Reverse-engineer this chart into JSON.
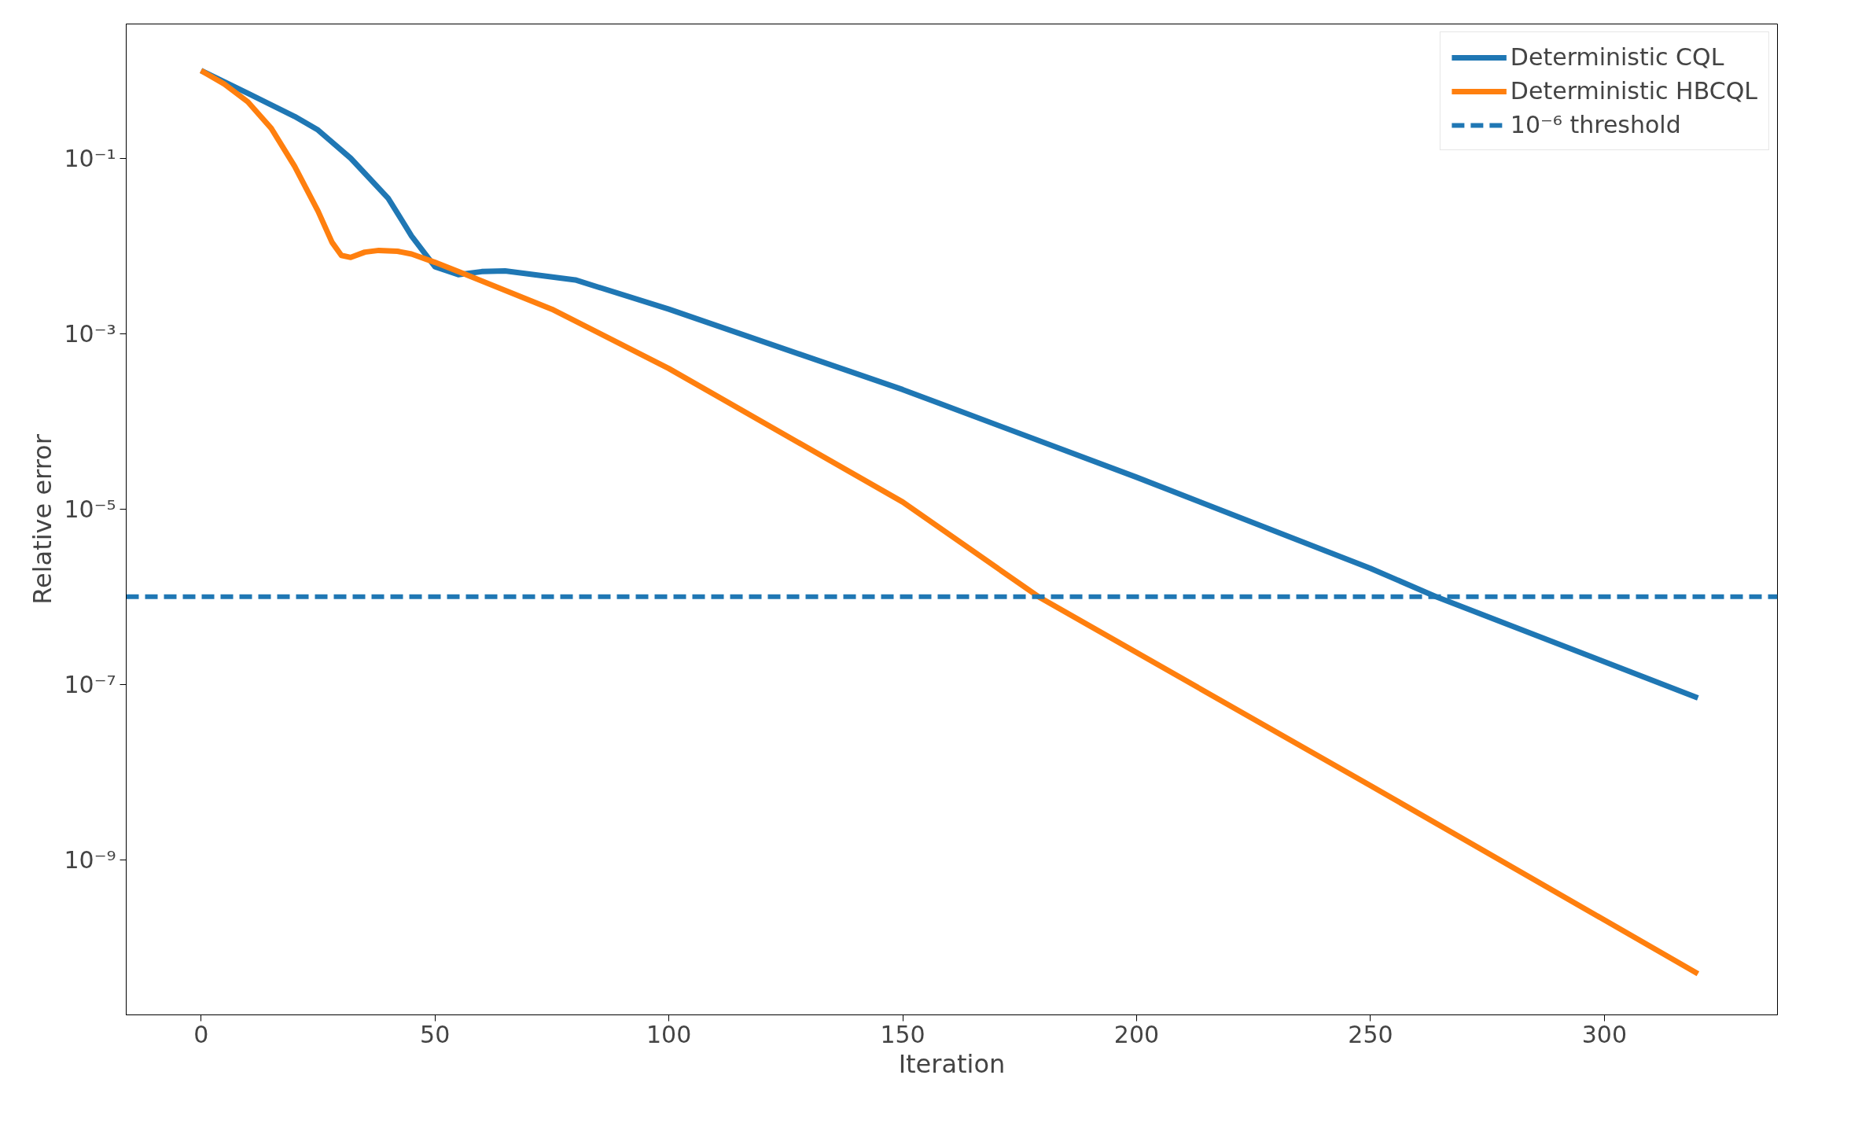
{
  "chart_data": {
    "type": "line",
    "xlabel": "Iteration",
    "ylabel": "Relative error",
    "log": "y",
    "grid": false,
    "legend": "top right",
    "line_style": "solid",
    "xlim": [
      -16,
      337
    ],
    "xticks": [
      0,
      50,
      100,
      150,
      200,
      250,
      300
    ],
    "ylim": [
      1.7e-11,
      3.4
    ],
    "yticks": [
      {
        "value": 0.1,
        "label": "10⁻¹"
      },
      {
        "value": 0.001,
        "label": "10⁻³"
      },
      {
        "value": 1e-05,
        "label": "10⁻⁵"
      },
      {
        "value": 1e-07,
        "label": "10⁻⁷"
      },
      {
        "value": 1e-09,
        "label": "10⁻⁹"
      }
    ],
    "series": [
      {
        "name": "Deterministic CQL",
        "color": "#1f77b4",
        "x": [
          0,
          10,
          20,
          25,
          32,
          40,
          45,
          50,
          55,
          60,
          65,
          80,
          100,
          150,
          200,
          250,
          264,
          320
        ],
        "values": [
          1.0,
          0.55,
          0.3,
          0.21,
          0.1,
          0.035,
          0.013,
          0.0058,
          0.0047,
          0.0051,
          0.0052,
          0.0041,
          0.0019,
          0.00023,
          2.3e-05,
          2.1e-06,
          1e-06,
          7e-08
        ]
      },
      {
        "name": "Deterministic HBCQL",
        "color": "#ff7f0e",
        "x": [
          0,
          5,
          10,
          15,
          20,
          25,
          28,
          30,
          32,
          35,
          38,
          42,
          45,
          50,
          55,
          75,
          100,
          150,
          179,
          250,
          320
        ],
        "values": [
          1.0,
          0.7,
          0.44,
          0.22,
          0.081,
          0.025,
          0.011,
          0.0078,
          0.0074,
          0.0085,
          0.0089,
          0.0087,
          0.0081,
          0.0065,
          0.0051,
          0.0019,
          0.0004,
          1.2e-05,
          1e-06,
          7e-09,
          5e-11
        ]
      }
    ],
    "ref_lines": [
      {
        "axis": "y",
        "value": 1e-06,
        "label": "10⁻⁶ threshold",
        "color": "#1f77b4",
        "line_style": "dashed"
      }
    ]
  }
}
